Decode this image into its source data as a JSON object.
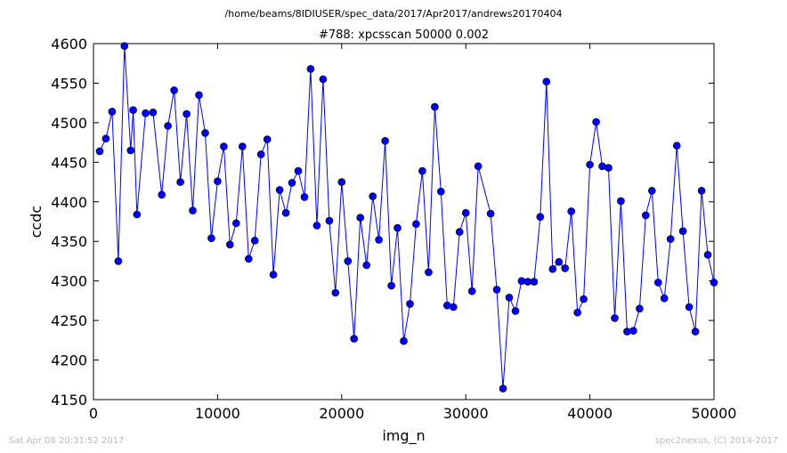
{
  "figure": {
    "suptitle": "/home/beams/8IDIUSER/spec_data/2017/Apr2017/andrews20170404",
    "footer_left": "Sat Apr 08 20:31:52 2017",
    "footer_right": "spec2nexus, (C) 2014-2017"
  },
  "chart_data": {
    "type": "line",
    "title": "#788: xpcsscan 50000 0.002",
    "xlabel": "img_n",
    "ylabel": "ccdc",
    "xlim": [
      0,
      50000
    ],
    "ylim": [
      4150,
      4600
    ],
    "xticks": [
      0,
      10000,
      20000,
      30000,
      40000,
      50000
    ],
    "yticks": [
      4150,
      4200,
      4250,
      4300,
      4350,
      4400,
      4450,
      4500,
      4550,
      4600
    ],
    "grid": false,
    "marker": "circle",
    "color": "#0000ff",
    "x": [
      500,
      1000,
      1500,
      2000,
      2500,
      3000,
      3200,
      3500,
      4200,
      4800,
      5500,
      6000,
      6500,
      7000,
      7500,
      8000,
      8500,
      9000,
      9500,
      10000,
      10500,
      11000,
      11500,
      12000,
      12500,
      13000,
      13500,
      14000,
      14500,
      15000,
      15500,
      16000,
      16500,
      17000,
      17500,
      18000,
      18500,
      19000,
      19500,
      20000,
      20500,
      21000,
      21500,
      22000,
      22500,
      23000,
      23500,
      24000,
      24500,
      25000,
      25500,
      26000,
      26500,
      27000,
      27500,
      28000,
      28500,
      29000,
      29500,
      30000,
      30500,
      31000,
      32000,
      32500,
      33000,
      33500,
      34000,
      34500,
      35000,
      35500,
      36000,
      36500,
      37000,
      37500,
      38000,
      38500,
      39000,
      39500,
      40000,
      40500,
      41000,
      41500,
      42000,
      42500,
      43000,
      43500,
      44000,
      44500,
      45000,
      45500,
      46000,
      46500,
      47000,
      47500,
      48000,
      48500,
      49000,
      49500,
      50000
    ],
    "y": [
      4464,
      4480,
      4514,
      4325,
      4597,
      4465,
      4516,
      4384,
      4512,
      4513,
      4409,
      4496,
      4541,
      4425,
      4511,
      4389,
      4535,
      4487,
      4354,
      4426,
      4470,
      4346,
      4373,
      4470,
      4328,
      4351,
      4460,
      4479,
      4308,
      4415,
      4386,
      4424,
      4439,
      4406,
      4568,
      4370,
      4555,
      4376,
      4285,
      4425,
      4325,
      4227,
      4380,
      4320,
      4407,
      4352,
      4477,
      4294,
      4367,
      4224,
      4271,
      4372,
      4439,
      4311,
      4520,
      4413,
      4269,
      4267,
      4362,
      4386,
      4287,
      4445,
      4385,
      4289,
      4164,
      4279,
      4262,
      4300,
      4299,
      4299,
      4381,
      4552,
      4315,
      4324,
      4316,
      4388,
      4260,
      4277,
      4447,
      4501,
      4445,
      4443,
      4253,
      4401,
      4236,
      4237,
      4265,
      4383,
      4414,
      4298,
      4278,
      4353,
      4471,
      4363,
      4267,
      4236,
      4414,
      4333,
      4298
    ]
  }
}
